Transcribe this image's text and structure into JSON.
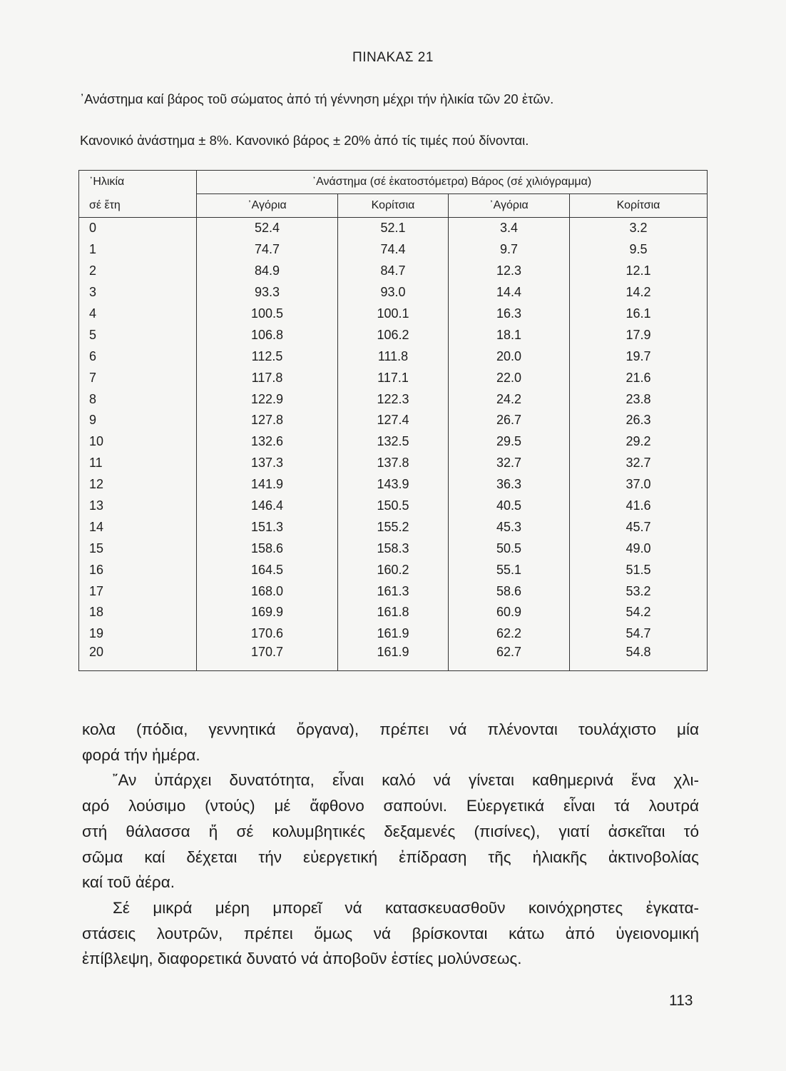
{
  "table_title": "ΠΙΝΑΚΑΣ 21",
  "caption1": "᾽Ανάστημα καί βάρος τοῦ σώματος ἀπό τή γέννηση μέχρι τήν ἡλικία τῶν 20 ἐτῶν.",
  "caption2": "Κανονικό ἀνάστημα ± 8%. Κανονικό βάρος ± 20% ἀπό τίς τιμές πού δίνονται.",
  "table": {
    "age_header": [
      "᾽Ηλικία",
      "σέ ἔτη"
    ],
    "group_header": "᾽Ανάστημα (σέ ἑκατοστόμετρα)  Βάρος (σέ χιλιόγραμμα)",
    "columns": [
      "᾽Αγόρια",
      "Κορίτσια",
      "᾽Αγόρια",
      "Κορίτσια"
    ],
    "rows": [
      [
        "0",
        "52.4",
        "52.1",
        "3.4",
        "3.2"
      ],
      [
        "1",
        "74.7",
        "74.4",
        "9.7",
        "9.5"
      ],
      [
        "2",
        "84.9",
        "84.7",
        "12.3",
        "12.1"
      ],
      [
        "3",
        "93.3",
        "93.0",
        "14.4",
        "14.2"
      ],
      [
        "4",
        "100.5",
        "100.1",
        "16.3",
        "16.1"
      ],
      [
        "5",
        "106.8",
        "106.2",
        "18.1",
        "17.9"
      ],
      [
        "6",
        "112.5",
        "111.8",
        "20.0",
        "19.7"
      ],
      [
        "7",
        "117.8",
        "117.1",
        "22.0",
        "21.6"
      ],
      [
        "8",
        "122.9",
        "122.3",
        "24.2",
        "23.8"
      ],
      [
        "9",
        "127.8",
        "127.4",
        "26.7",
        "26.3"
      ],
      [
        "10",
        "132.6",
        "132.5",
        "29.5",
        "29.2"
      ],
      [
        "11",
        "137.3",
        "137.8",
        "32.7",
        "32.7"
      ],
      [
        "12",
        "141.9",
        "143.9",
        "36.3",
        "37.0"
      ],
      [
        "13",
        "146.4",
        "150.5",
        "40.5",
        "41.6"
      ],
      [
        "14",
        "151.3",
        "155.2",
        "45.3",
        "45.7"
      ],
      [
        "15",
        "158.6",
        "158.3",
        "50.5",
        "49.0"
      ],
      [
        "16",
        "164.5",
        "160.2",
        "55.1",
        "51.5"
      ],
      [
        "17",
        "168.0",
        "161.3",
        "58.6",
        "53.2"
      ],
      [
        "18",
        "169.9",
        "161.8",
        "60.9",
        "54.2"
      ],
      [
        "19",
        "170.6",
        "161.9",
        "62.2",
        "54.7"
      ],
      [
        "20",
        "170.7",
        "161.9",
        "62.7",
        "54.8"
      ]
    ]
  },
  "body_lines": [
    "κολα (πόδια, γεννητικά ὄργανα), πρέπει νά πλένονται τουλάχιστο μία",
    "φορά τήν ἡμέρα.",
    "῎Αν ὑπάρχει δυνατότητα, εἶναι καλό νά γίνεται καθημερινά ἕνα χλι-",
    "αρό λούσιμο (ντούς) μέ ἄφθονο σαπούνι. Εὐεργετικά εἶναι τά λουτρά",
    "στή θάλασσα ἤ σέ κολυμβητικές δεξαμενές (πισίνες), γιατί ἀσκεῖται τό",
    "σῶμα καί δέχεται τήν εὐεργετική ἐπίδραση τῆς ἡλιακῆς ἀκτινοβολίας",
    "καί τοῦ ἀέρα.",
    "Σέ μικρά μέρη μπορεῖ νά κατασκευασθοῦν κοινόχρηστες ἐγκατα-",
    "στάσεις λουτρῶν, πρέπει ὅμως νά βρίσκονται κάτω ἀπό ὑγειονομική",
    "ἐπίβλεψη, διαφορετικά δυνατό νά ἀποβοῦν ἑστίες μολύνσεως."
  ],
  "page_number": "113"
}
